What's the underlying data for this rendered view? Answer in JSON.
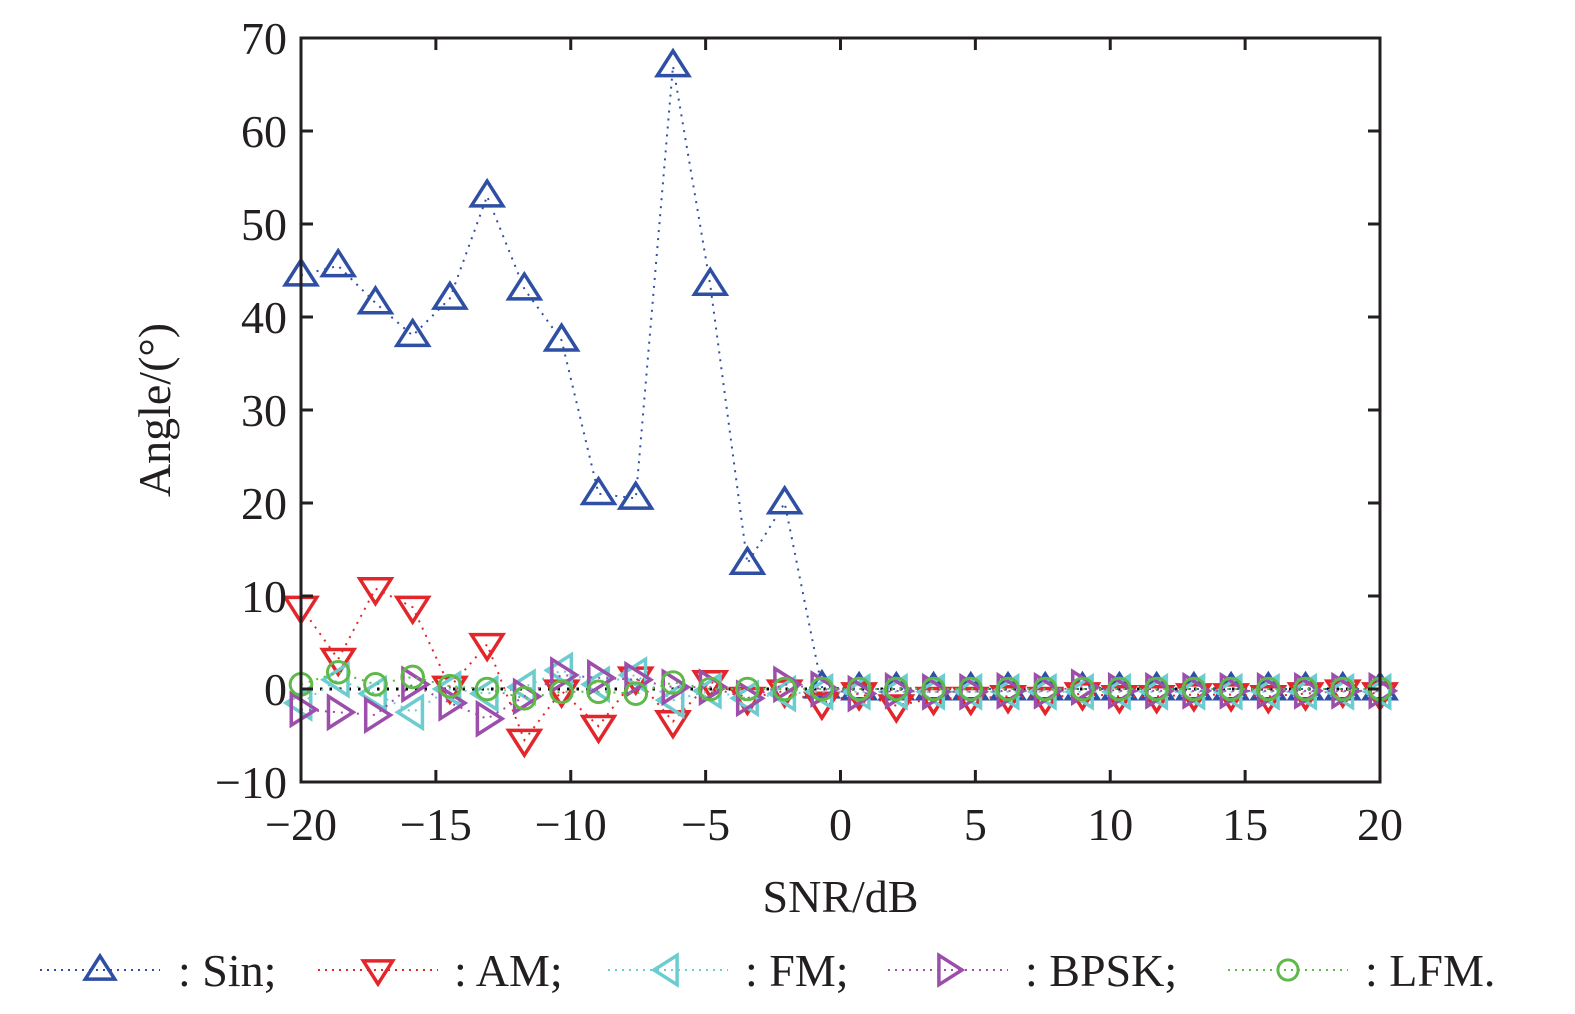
{
  "chart_data": {
    "type": "line",
    "title": "",
    "xlabel": "SNR/dB",
    "ylabel": "Angle/(°)",
    "xlim": [
      -20,
      20
    ],
    "ylim": [
      -10,
      70
    ],
    "xticks": [
      -20,
      -15,
      -10,
      -5,
      0,
      5,
      10,
      15,
      20
    ],
    "xtick_labels": [
      "−20",
      "−15",
      "−10",
      "−5",
      "0",
      "5",
      "10",
      "15",
      "20"
    ],
    "yticks": [
      -10,
      0,
      10,
      20,
      30,
      40,
      50,
      60,
      70
    ],
    "ytick_labels": [
      "−10",
      "0",
      "10",
      "20",
      "30",
      "40",
      "50",
      "60",
      "70"
    ],
    "grid": false,
    "legend_position": "bottom",
    "reference_line": {
      "y": 0,
      "color": "#000000",
      "style": "dotted"
    },
    "x": [
      -20,
      -18.62,
      -17.24,
      -15.86,
      -14.48,
      -13.1,
      -11.72,
      -10.34,
      -8.97,
      -7.59,
      -6.21,
      -4.83,
      -3.45,
      -2.07,
      -0.69,
      0.69,
      2.07,
      3.45,
      4.83,
      6.21,
      7.59,
      8.97,
      10.34,
      11.72,
      13.1,
      14.48,
      15.86,
      17.24,
      18.62,
      20
    ],
    "series": [
      {
        "name": "Sin",
        "legend_label": ": Sin;",
        "color": "#2e4fa3",
        "marker": "triangle-up",
        "values": [
          44.5,
          45.5,
          41.5,
          38,
          42,
          53,
          43,
          37.5,
          21,
          20.5,
          67,
          43.5,
          13.5,
          20,
          0.2,
          0,
          0,
          0,
          0,
          0,
          0,
          0,
          0,
          0,
          0,
          0,
          0,
          0,
          0,
          0
        ]
      },
      {
        "name": "AM",
        "legend_label": ": AM;",
        "color": "#e3262b",
        "marker": "triangle-down",
        "values": [
          8.8,
          3.2,
          10.8,
          8.8,
          0.2,
          4.8,
          -5.5,
          -0.2,
          -4,
          1.2,
          -3.5,
          0.8,
          -1,
          -0.2,
          -1.5,
          -0.5,
          -1.8,
          -1,
          -1,
          -0.8,
          -1,
          -0.5,
          -0.8,
          -0.8,
          -0.6,
          -0.6,
          -0.8,
          -0.5,
          -0.2,
          -0.5
        ]
      },
      {
        "name": "FM",
        "legend_label": ": FM;",
        "color": "#6dccd0",
        "marker": "triangle-left",
        "values": [
          -1.5,
          1,
          -0.5,
          -2.5,
          0,
          -0.5,
          0.2,
          2,
          0.5,
          1.5,
          -1.2,
          -0.2,
          -1,
          -0.5,
          -0.3,
          -0.3,
          -0.3,
          -0.3,
          -0.3,
          -0.3,
          -0.3,
          -0.3,
          -0.3,
          -0.3,
          -0.3,
          -0.3,
          -0.3,
          -0.3,
          -0.3,
          -0.3
        ]
      },
      {
        "name": "BPSK",
        "legend_label": ": BPSK;",
        "color": "#9b4fab",
        "marker": "triangle-right",
        "values": [
          -2.2,
          -2.5,
          -2.8,
          0.5,
          -1.5,
          -3.2,
          -0.8,
          1.5,
          1.2,
          1,
          0.2,
          0.2,
          -1,
          0.5,
          0,
          -0.5,
          -0.2,
          -0.3,
          -0.3,
          -0.2,
          -0.2,
          0.2,
          -0.2,
          -0.2,
          -0.2,
          -0.2,
          -0.2,
          -0.2,
          -0.2,
          -0.2
        ]
      },
      {
        "name": "LFM",
        "legend_label": ": LFM.",
        "color": "#5fb94a",
        "marker": "circle",
        "values": [
          0.5,
          1.8,
          0.5,
          1.3,
          0.3,
          0,
          -1,
          -0.3,
          -0.3,
          -0.5,
          0.7,
          0,
          0,
          0,
          0,
          0,
          0,
          0,
          0,
          0,
          0,
          0,
          0,
          0,
          0,
          0,
          0,
          0,
          0,
          0
        ]
      }
    ]
  }
}
